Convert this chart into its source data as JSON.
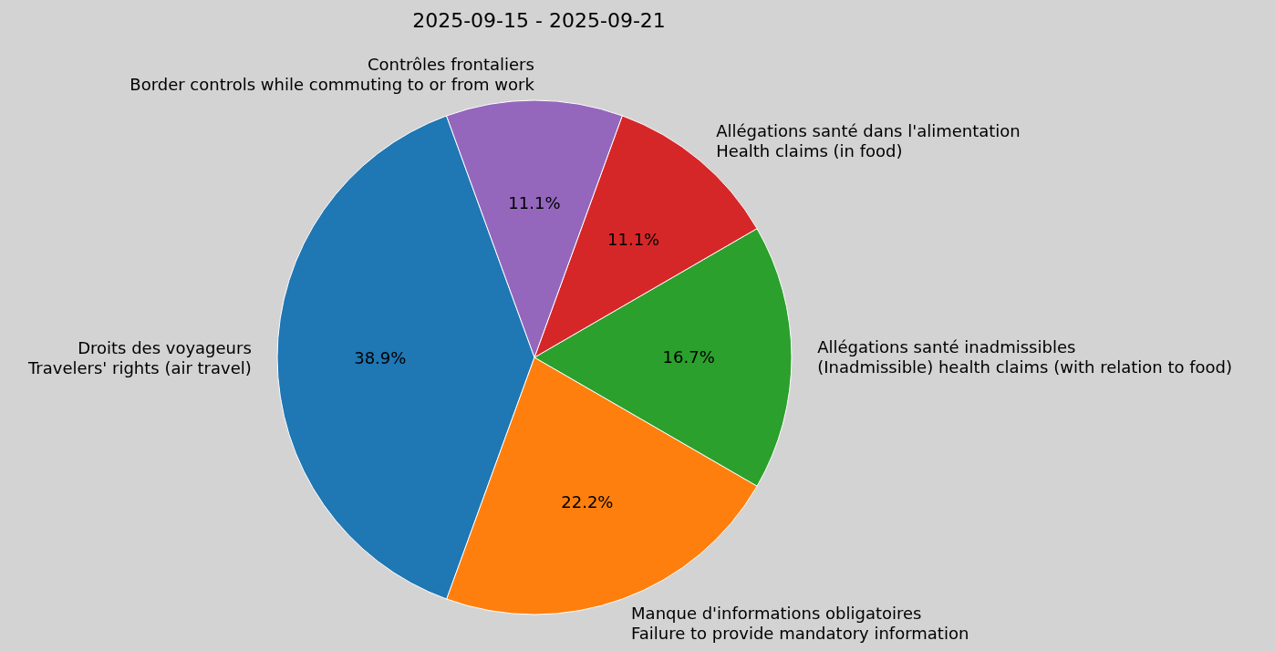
{
  "chart_data": {
    "type": "pie",
    "title": "2025-09-15 - 2025-09-21",
    "categories": [
      "Droits des voyageurs\nTravelers' rights (air travel)",
      "Manque d'informations obligatoires\nFailure to provide mandatory information",
      "Allégations santé inadmissibles\n(Inadmissible) health claims (with relation to food)",
      "Allégations santé dans l'alimentation\nHealth claims (in food)",
      "Contrôles frontaliers\nBorder controls while commuting to or from work"
    ],
    "values": [
      38.9,
      22.2,
      16.7,
      11.1,
      11.1
    ],
    "colors": [
      "#1f77b4",
      "#ff7f0e",
      "#2ca02c",
      "#d62728",
      "#9467bd"
    ],
    "value_labels": [
      "38.9%",
      "22.2%",
      "16.7%",
      "11.1%",
      "11.1%"
    ],
    "legend": false
  }
}
